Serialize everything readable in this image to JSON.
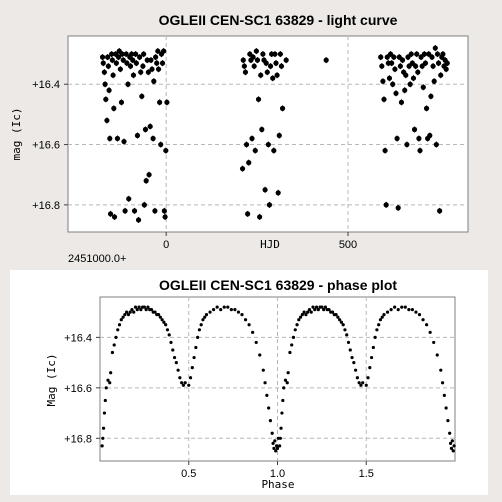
{
  "chart_data": [
    {
      "type": "scatter",
      "title": "OGLEII CEN-SC1 63829 - light curve",
      "xlabel": "HJD",
      "ylabel": "mag (Ic)",
      "x_offset_label": "2451000.0+",
      "x_ticks": [
        0,
        500
      ],
      "x_tick_labels": [
        "0",
        "500"
      ],
      "xlim": [
        -270,
        830
      ],
      "y_ticks": [
        16.4,
        16.6,
        16.8
      ],
      "y_tick_labels": [
        "+16.4",
        "+16.6",
        "+16.8"
      ],
      "ylim": [
        16.24,
        16.89
      ],
      "y_inverted": true,
      "grid": true,
      "error_bars": true,
      "points": [
        [
          -175,
          16.31
        ],
        [
          -173,
          16.33
        ],
        [
          -170,
          16.36
        ],
        [
          -168,
          16.4
        ],
        [
          -166,
          16.45
        ],
        [
          -163,
          16.52
        ],
        [
          -161,
          16.31
        ],
        [
          -159,
          16.34
        ],
        [
          -157,
          16.42
        ],
        [
          -155,
          16.58
        ],
        [
          -153,
          16.83
        ],
        [
          -150,
          16.3
        ],
        [
          -148,
          16.32
        ],
        [
          -146,
          16.37
        ],
        [
          -144,
          16.48
        ],
        [
          -142,
          16.84
        ],
        [
          -139,
          16.3
        ],
        [
          -137,
          16.33
        ],
        [
          -134,
          16.58
        ],
        [
          -131,
          16.31
        ],
        [
          -129,
          16.29
        ],
        [
          -126,
          16.35
        ],
        [
          -123,
          16.46
        ],
        [
          -121,
          16.3
        ],
        [
          -118,
          16.32
        ],
        [
          -116,
          16.59
        ],
        [
          -113,
          16.82
        ],
        [
          -110,
          16.3
        ],
        [
          -108,
          16.33
        ],
        [
          -105,
          16.4
        ],
        [
          -103,
          16.78
        ],
        [
          -100,
          16.31
        ],
        [
          -98,
          16.34
        ],
        [
          -95,
          16.3
        ],
        [
          -92,
          16.32
        ],
        [
          -90,
          16.37
        ],
        [
          -87,
          16.82
        ],
        [
          -84,
          16.3
        ],
        [
          -82,
          16.33
        ],
        [
          -79,
          16.57
        ],
        [
          -76,
          16.85
        ],
        [
          -73,
          16.31
        ],
        [
          -70,
          16.36
        ],
        [
          -67,
          16.44
        ],
        [
          -64,
          16.34
        ],
        [
          -62,
          16.3
        ],
        [
          -60,
          16.8
        ],
        [
          -57,
          16.55
        ],
        [
          -55,
          16.72
        ],
        [
          -52,
          16.32
        ],
        [
          -49,
          16.36
        ],
        [
          -47,
          16.7
        ],
        [
          -44,
          16.54
        ],
        [
          -42,
          16.32
        ],
        [
          -39,
          16.35
        ],
        [
          -36,
          16.58
        ],
        [
          -34,
          16.39
        ],
        [
          -31,
          16.82
        ],
        [
          -29,
          16.31
        ],
        [
          -26,
          16.33
        ],
        [
          -23,
          16.29
        ],
        [
          -21,
          16.35
        ],
        [
          -18,
          16.46
        ],
        [
          -15,
          16.6
        ],
        [
          -13,
          16.3
        ],
        [
          -10,
          16.33
        ],
        [
          -7,
          16.29
        ],
        [
          -5,
          16.82
        ],
        [
          -3,
          16.84
        ],
        [
          -1,
          16.62
        ],
        [
          2,
          16.46
        ],
        [
          210,
          16.68
        ],
        [
          212,
          16.32
        ],
        [
          215,
          16.34
        ],
        [
          218,
          16.36
        ],
        [
          221,
          16.6
        ],
        [
          224,
          16.83
        ],
        [
          227,
          16.66
        ],
        [
          230,
          16.3
        ],
        [
          233,
          16.32
        ],
        [
          236,
          16.58
        ],
        [
          239,
          16.31
        ],
        [
          242,
          16.34
        ],
        [
          245,
          16.62
        ],
        [
          248,
          16.29
        ],
        [
          251,
          16.32
        ],
        [
          254,
          16.45
        ],
        [
          257,
          16.84
        ],
        [
          260,
          16.37
        ],
        [
          263,
          16.55
        ],
        [
          266,
          16.3
        ],
        [
          269,
          16.32
        ],
        [
          272,
          16.75
        ],
        [
          275,
          16.33
        ],
        [
          278,
          16.36
        ],
        [
          281,
          16.6
        ],
        [
          284,
          16.8
        ],
        [
          287,
          16.34
        ],
        [
          290,
          16.3
        ],
        [
          293,
          16.38
        ],
        [
          296,
          16.62
        ],
        [
          299,
          16.3
        ],
        [
          302,
          16.33
        ],
        [
          305,
          16.37
        ],
        [
          308,
          16.76
        ],
        [
          311,
          16.57
        ],
        [
          314,
          16.3
        ],
        [
          317,
          16.34
        ],
        [
          320,
          16.48
        ],
        [
          330,
          16.32
        ],
        [
          440,
          16.32
        ],
        [
          590,
          16.31
        ],
        [
          593,
          16.34
        ],
        [
          596,
          16.39
        ],
        [
          599,
          16.45
        ],
        [
          602,
          16.62
        ],
        [
          605,
          16.8
        ],
        [
          608,
          16.31
        ],
        [
          611,
          16.33
        ],
        [
          614,
          16.38
        ],
        [
          617,
          16.3
        ],
        [
          620,
          16.33
        ],
        [
          623,
          16.4
        ],
        [
          626,
          16.31
        ],
        [
          629,
          16.35
        ],
        [
          632,
          16.43
        ],
        [
          635,
          16.58
        ],
        [
          638,
          16.81
        ],
        [
          641,
          16.31
        ],
        [
          644,
          16.34
        ],
        [
          647,
          16.46
        ],
        [
          650,
          16.32
        ],
        [
          653,
          16.36
        ],
        [
          656,
          16.42
        ],
        [
          659,
          16.37
        ],
        [
          662,
          16.6
        ],
        [
          665,
          16.31
        ],
        [
          668,
          16.34
        ],
        [
          671,
          16.4
        ],
        [
          674,
          16.3
        ],
        [
          677,
          16.33
        ],
        [
          680,
          16.38
        ],
        [
          683,
          16.55
        ],
        [
          686,
          16.34
        ],
        [
          689,
          16.3
        ],
        [
          692,
          16.36
        ],
        [
          695,
          16.58
        ],
        [
          698,
          16.62
        ],
        [
          701,
          16.31
        ],
        [
          704,
          16.34
        ],
        [
          707,
          16.41
        ],
        [
          710,
          16.3
        ],
        [
          713,
          16.33
        ],
        [
          716,
          16.48
        ],
        [
          719,
          16.58
        ],
        [
          722,
          16.3
        ],
        [
          725,
          16.57
        ],
        [
          728,
          16.44
        ],
        [
          731,
          16.31
        ],
        [
          734,
          16.34
        ],
        [
          737,
          16.39
        ],
        [
          740,
          16.28
        ],
        [
          743,
          16.6
        ],
        [
          746,
          16.3
        ],
        [
          749,
          16.33
        ],
        [
          752,
          16.82
        ],
        [
          755,
          16.37
        ],
        [
          758,
          16.31
        ],
        [
          761,
          16.3
        ],
        [
          764,
          16.34
        ],
        [
          767,
          16.32
        ],
        [
          770,
          16.35
        ],
        [
          773,
          16.33
        ]
      ]
    },
    {
      "type": "scatter",
      "title": "OGLEII CEN-SC1 63829 - phase plot",
      "xlabel": "Phase",
      "ylabel": "Mag (Ic)",
      "x_ticks": [
        0.5,
        1.0,
        1.5
      ],
      "x_tick_labels": [
        "0.5",
        "1.0",
        "1.5"
      ],
      "xlim": [
        0,
        2
      ],
      "y_ticks": [
        16.4,
        16.6,
        16.8
      ],
      "y_tick_labels": [
        "+16.4",
        "+16.6",
        "+16.8"
      ],
      "ylim": [
        16.24,
        16.89
      ],
      "y_inverted": true,
      "grid": true,
      "points": [
        [
          0.012,
          16.83
        ],
        [
          0.016,
          16.8
        ],
        [
          0.02,
          16.76
        ],
        [
          0.025,
          16.7
        ],
        [
          0.03,
          16.65
        ],
        [
          0.035,
          16.6
        ],
        [
          0.045,
          16.57
        ],
        [
          0.055,
          16.58
        ],
        [
          0.06,
          16.54
        ],
        [
          0.07,
          16.46
        ],
        [
          0.08,
          16.43
        ],
        [
          0.09,
          16.4
        ],
        [
          0.1,
          16.37
        ],
        [
          0.11,
          16.35
        ],
        [
          0.12,
          16.33
        ],
        [
          0.13,
          16.32
        ],
        [
          0.14,
          16.31
        ],
        [
          0.15,
          16.3
        ],
        [
          0.16,
          16.31
        ],
        [
          0.17,
          16.3
        ],
        [
          0.18,
          16.29
        ],
        [
          0.19,
          16.3
        ],
        [
          0.2,
          16.28
        ],
        [
          0.21,
          16.29
        ],
        [
          0.22,
          16.28
        ],
        [
          0.23,
          16.29
        ],
        [
          0.24,
          16.28
        ],
        [
          0.25,
          16.28
        ],
        [
          0.26,
          16.29
        ],
        [
          0.27,
          16.28
        ],
        [
          0.28,
          16.29
        ],
        [
          0.29,
          16.29
        ],
        [
          0.3,
          16.3
        ],
        [
          0.31,
          16.3
        ],
        [
          0.32,
          16.31
        ],
        [
          0.33,
          16.31
        ],
        [
          0.34,
          16.32
        ],
        [
          0.35,
          16.33
        ],
        [
          0.36,
          16.34
        ],
        [
          0.37,
          16.35
        ],
        [
          0.38,
          16.37
        ],
        [
          0.39,
          16.39
        ],
        [
          0.4,
          16.42
        ],
        [
          0.41,
          16.45
        ],
        [
          0.42,
          16.48
        ],
        [
          0.43,
          16.5
        ],
        [
          0.44,
          16.53
        ],
        [
          0.45,
          16.56
        ],
        [
          0.46,
          16.58
        ],
        [
          0.47,
          16.59
        ],
        [
          0.48,
          16.58
        ],
        [
          0.5,
          16.59
        ],
        [
          0.51,
          16.56
        ],
        [
          0.52,
          16.52
        ],
        [
          0.53,
          16.48
        ],
        [
          0.54,
          16.44
        ],
        [
          0.55,
          16.4
        ],
        [
          0.56,
          16.37
        ],
        [
          0.57,
          16.35
        ],
        [
          0.58,
          16.33
        ],
        [
          0.59,
          16.32
        ],
        [
          0.6,
          16.31
        ],
        [
          0.62,
          16.3
        ],
        [
          0.64,
          16.29
        ],
        [
          0.66,
          16.28
        ],
        [
          0.68,
          16.29
        ],
        [
          0.7,
          16.28
        ],
        [
          0.72,
          16.28
        ],
        [
          0.74,
          16.29
        ],
        [
          0.76,
          16.29
        ],
        [
          0.78,
          16.3
        ],
        [
          0.8,
          16.31
        ],
        [
          0.82,
          16.33
        ],
        [
          0.84,
          16.35
        ],
        [
          0.86,
          16.38
        ],
        [
          0.88,
          16.42
        ],
        [
          0.9,
          16.47
        ],
        [
          0.92,
          16.53
        ],
        [
          0.93,
          16.58
        ],
        [
          0.94,
          16.63
        ],
        [
          0.95,
          16.68
        ],
        [
          0.96,
          16.73
        ],
        [
          0.97,
          16.78
        ],
        [
          0.975,
          16.82
        ],
        [
          0.98,
          16.84
        ],
        [
          0.985,
          16.81
        ],
        [
          0.99,
          16.85
        ],
        [
          0.995,
          16.83
        ],
        [
          1.0,
          16.84
        ],
        [
          1.005,
          16.8
        ],
        [
          1.012,
          16.83
        ],
        [
          1.016,
          16.8
        ],
        [
          1.02,
          16.76
        ],
        [
          1.025,
          16.7
        ],
        [
          1.03,
          16.65
        ],
        [
          1.035,
          16.6
        ],
        [
          1.045,
          16.57
        ],
        [
          1.055,
          16.58
        ],
        [
          1.06,
          16.54
        ],
        [
          1.07,
          16.46
        ],
        [
          1.08,
          16.43
        ],
        [
          1.09,
          16.4
        ],
        [
          1.1,
          16.37
        ],
        [
          1.11,
          16.35
        ],
        [
          1.12,
          16.33
        ],
        [
          1.13,
          16.32
        ],
        [
          1.14,
          16.31
        ],
        [
          1.15,
          16.3
        ],
        [
          1.16,
          16.31
        ],
        [
          1.17,
          16.3
        ],
        [
          1.18,
          16.29
        ],
        [
          1.19,
          16.3
        ],
        [
          1.2,
          16.28
        ],
        [
          1.21,
          16.29
        ],
        [
          1.22,
          16.28
        ],
        [
          1.23,
          16.29
        ],
        [
          1.24,
          16.28
        ],
        [
          1.25,
          16.28
        ],
        [
          1.26,
          16.29
        ],
        [
          1.27,
          16.28
        ],
        [
          1.28,
          16.29
        ],
        [
          1.29,
          16.29
        ],
        [
          1.3,
          16.3
        ],
        [
          1.31,
          16.3
        ],
        [
          1.32,
          16.31
        ],
        [
          1.33,
          16.31
        ],
        [
          1.34,
          16.32
        ],
        [
          1.35,
          16.33
        ],
        [
          1.36,
          16.34
        ],
        [
          1.37,
          16.35
        ],
        [
          1.38,
          16.37
        ],
        [
          1.39,
          16.39
        ],
        [
          1.4,
          16.42
        ],
        [
          1.41,
          16.45
        ],
        [
          1.42,
          16.48
        ],
        [
          1.43,
          16.5
        ],
        [
          1.44,
          16.53
        ],
        [
          1.45,
          16.56
        ],
        [
          1.46,
          16.58
        ],
        [
          1.47,
          16.59
        ],
        [
          1.48,
          16.58
        ],
        [
          1.5,
          16.59
        ],
        [
          1.51,
          16.56
        ],
        [
          1.52,
          16.52
        ],
        [
          1.53,
          16.48
        ],
        [
          1.54,
          16.44
        ],
        [
          1.55,
          16.4
        ],
        [
          1.56,
          16.37
        ],
        [
          1.57,
          16.35
        ],
        [
          1.58,
          16.33
        ],
        [
          1.59,
          16.32
        ],
        [
          1.6,
          16.31
        ],
        [
          1.62,
          16.3
        ],
        [
          1.64,
          16.29
        ],
        [
          1.66,
          16.28
        ],
        [
          1.68,
          16.29
        ],
        [
          1.7,
          16.28
        ],
        [
          1.72,
          16.28
        ],
        [
          1.74,
          16.29
        ],
        [
          1.76,
          16.29
        ],
        [
          1.78,
          16.3
        ],
        [
          1.8,
          16.31
        ],
        [
          1.82,
          16.33
        ],
        [
          1.84,
          16.35
        ],
        [
          1.86,
          16.38
        ],
        [
          1.88,
          16.42
        ],
        [
          1.9,
          16.47
        ],
        [
          1.92,
          16.53
        ],
        [
          1.93,
          16.58
        ],
        [
          1.94,
          16.63
        ],
        [
          1.95,
          16.68
        ],
        [
          1.96,
          16.73
        ],
        [
          1.97,
          16.78
        ],
        [
          1.975,
          16.82
        ],
        [
          1.98,
          16.84
        ],
        [
          1.985,
          16.81
        ],
        [
          1.99,
          16.85
        ],
        [
          1.995,
          16.83
        ]
      ]
    }
  ]
}
